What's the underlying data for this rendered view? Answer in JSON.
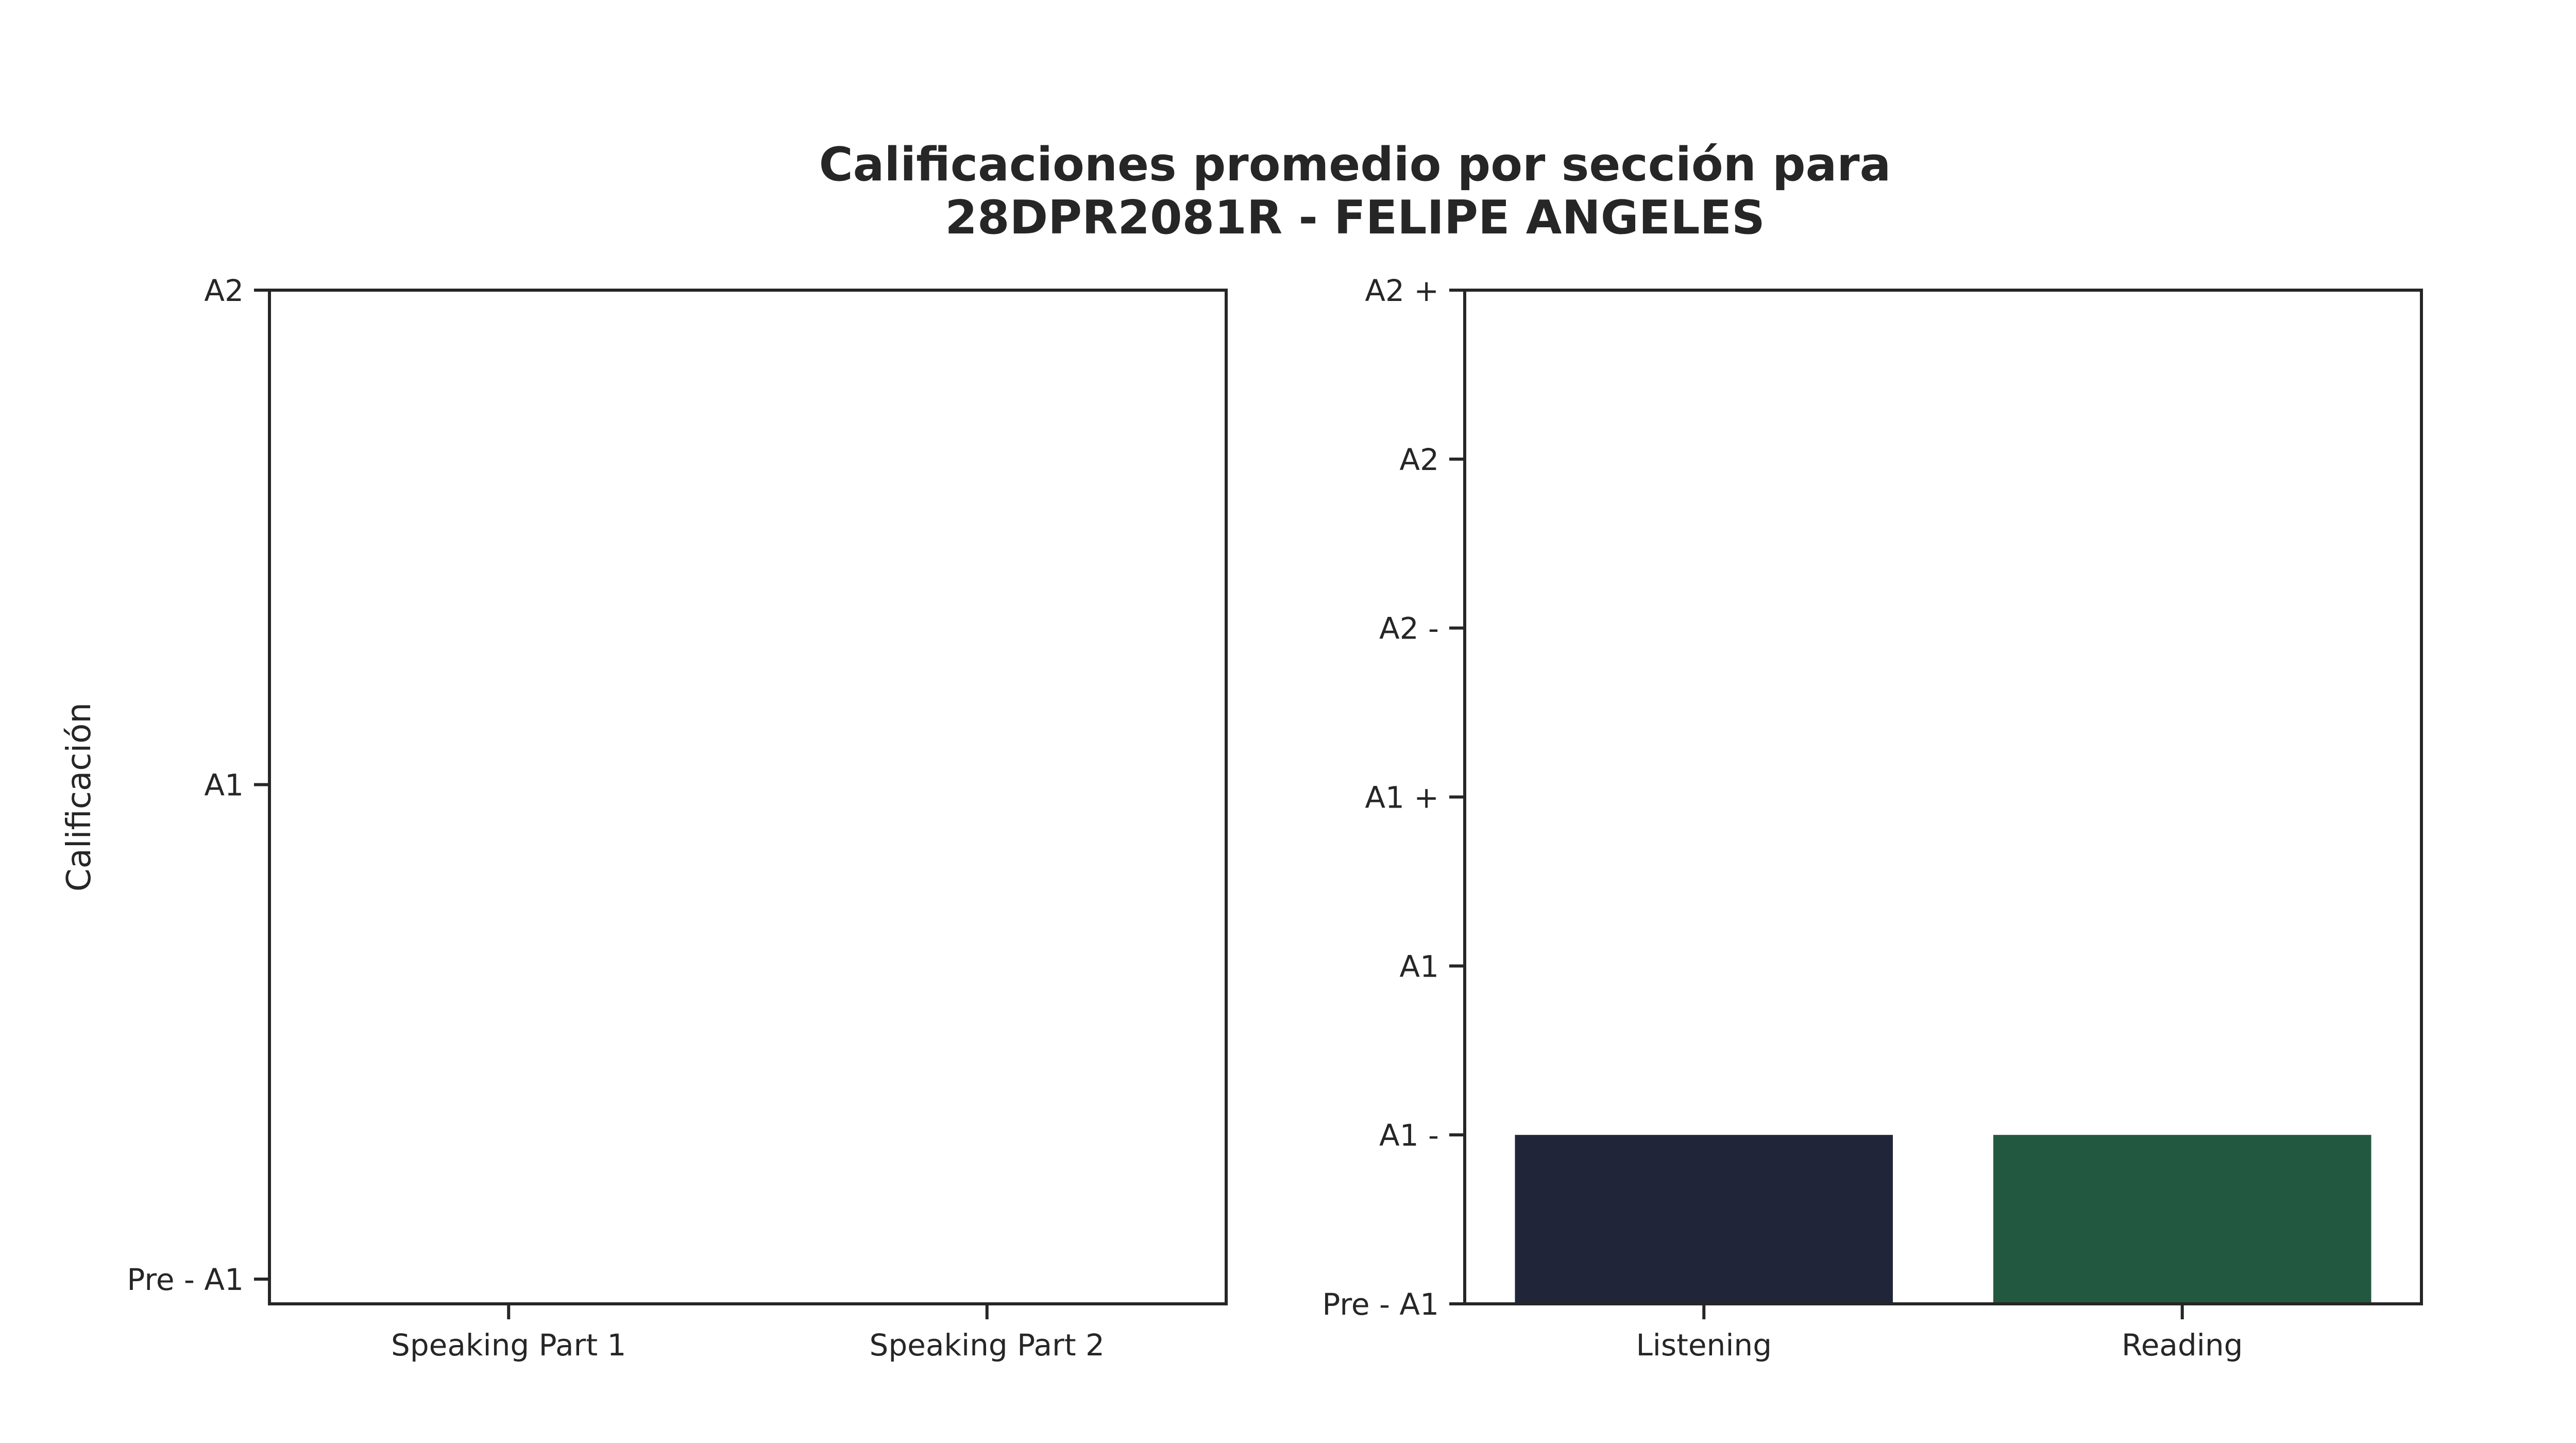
{
  "figure": {
    "title_line1": "Calificaciones promedio por sección para",
    "title_line2": "28DPR2081R - FELIPE ANGELES"
  },
  "chart_data": [
    {
      "type": "bar",
      "categories": [
        "Speaking Part 1",
        "Speaking Part 2"
      ],
      "values": [
        0,
        0
      ],
      "colors": [],
      "ylabel": "Calificación",
      "xlabel": "",
      "yticks": [
        {
          "value": 0,
          "label": "Pre - A1"
        },
        {
          "value": 1,
          "label": "A1"
        },
        {
          "value": 2,
          "label": "A2"
        }
      ],
      "ylim": [
        -0.05,
        2
      ],
      "grid": false
    },
    {
      "type": "bar",
      "categories": [
        "Listening",
        "Reading"
      ],
      "values": [
        1,
        1
      ],
      "colors": [
        "#20253a",
        "#235840"
      ],
      "ylabel": "",
      "xlabel": "",
      "yticks": [
        {
          "value": 0,
          "label": "Pre - A1"
        },
        {
          "value": 1,
          "label": "A1 -"
        },
        {
          "value": 2,
          "label": "A1"
        },
        {
          "value": 3,
          "label": "A1 +"
        },
        {
          "value": 4,
          "label": "A2 -"
        },
        {
          "value": 5,
          "label": "A2"
        },
        {
          "value": 6,
          "label": "A2 +"
        }
      ],
      "ylim": [
        0,
        6
      ],
      "grid": false
    }
  ]
}
